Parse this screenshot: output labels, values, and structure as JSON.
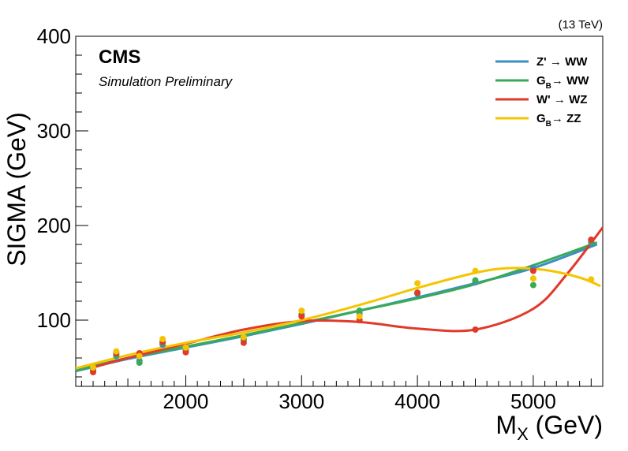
{
  "chart_data": {
    "type": "scatter",
    "title": "",
    "xlabel_main": "M",
    "xlabel_sub": "X",
    "xlabel_unit": " (GeV)",
    "ylabel": "SIGMA (GeV)",
    "experiment": "CMS",
    "status": "Simulation Preliminary",
    "energy": "(13 TeV)",
    "xlim": [
      1050,
      5600
    ],
    "ylim": [
      30,
      400
    ],
    "xticks": [
      2000,
      3000,
      4000,
      5000
    ],
    "xtick_labels": [
      "2000",
      "3000",
      "4000",
      "5000"
    ],
    "yticks": [
      100,
      200,
      300,
      400
    ],
    "ytick_labels": [
      "100",
      "200",
      "300",
      "400"
    ],
    "grid": false,
    "legend_position": "top-right",
    "series": [
      {
        "label_main": "Z'",
        "label_sub": "",
        "label_arrow": " → ",
        "label_final": "WW",
        "color": "#3a8fc4",
        "points": [
          [
            1200,
            48
          ],
          [
            1400,
            62
          ],
          [
            1600,
            57
          ],
          [
            1800,
            74
          ],
          [
            2000,
            68
          ],
          [
            2500,
            79
          ],
          [
            3000,
            105
          ],
          [
            3500,
            107
          ],
          [
            4000,
            128
          ],
          [
            4500,
            140
          ],
          [
            5000,
            155
          ],
          [
            5500,
            182
          ]
        ],
        "fit": [
          [
            1050,
            46
          ],
          [
            1500,
            59
          ],
          [
            2000,
            71
          ],
          [
            2500,
            83
          ],
          [
            3000,
            96
          ],
          [
            3500,
            110
          ],
          [
            4000,
            124
          ],
          [
            4500,
            139
          ],
          [
            5000,
            155
          ],
          [
            5550,
            180
          ]
        ]
      },
      {
        "label_main": "G",
        "label_sub": "B",
        "label_arrow": "→ ",
        "label_final": "WW",
        "color": "#3aaa55",
        "points": [
          [
            1200,
            47
          ],
          [
            1400,
            63
          ],
          [
            1600,
            55
          ],
          [
            1800,
            76
          ],
          [
            2000,
            69
          ],
          [
            2500,
            80
          ],
          [
            3000,
            106
          ],
          [
            3500,
            110
          ],
          [
            4000,
            129
          ],
          [
            4500,
            142
          ],
          [
            5000,
            137
          ],
          [
            5500,
            183
          ]
        ],
        "fit": [
          [
            1050,
            47
          ],
          [
            1500,
            60
          ],
          [
            2000,
            72
          ],
          [
            2500,
            84
          ],
          [
            3000,
            97
          ],
          [
            3500,
            110
          ],
          [
            4000,
            123
          ],
          [
            4500,
            138
          ],
          [
            5000,
            158
          ],
          [
            5550,
            182
          ]
        ]
      },
      {
        "label_main": "W'",
        "label_sub": "",
        "label_arrow": " → ",
        "label_final": "WZ",
        "color": "#e03a2a",
        "points": [
          [
            1200,
            45
          ],
          [
            1400,
            65
          ],
          [
            1600,
            65
          ],
          [
            1800,
            77
          ],
          [
            2000,
            66
          ],
          [
            2500,
            76
          ],
          [
            3000,
            104
          ],
          [
            3500,
            100
          ],
          [
            4000,
            129
          ],
          [
            4500,
            90
          ],
          [
            5000,
            152
          ],
          [
            5500,
            185
          ]
        ],
        "fit": [
          [
            1200,
            50
          ],
          [
            1500,
            60
          ],
          [
            2000,
            75
          ],
          [
            2500,
            90
          ],
          [
            3000,
            99
          ],
          [
            3500,
            98
          ],
          [
            4000,
            91
          ],
          [
            4500,
            90
          ],
          [
            5000,
            112
          ],
          [
            5300,
            150
          ],
          [
            5600,
            198
          ]
        ]
      },
      {
        "label_main": "G",
        "label_sub": "B",
        "label_arrow": "→ ",
        "label_final": "ZZ",
        "color": "#f5c400",
        "points": [
          [
            1200,
            50
          ],
          [
            1400,
            67
          ],
          [
            1600,
            62
          ],
          [
            1800,
            80
          ],
          [
            2000,
            71
          ],
          [
            2500,
            82
          ],
          [
            3000,
            110
          ],
          [
            3500,
            104
          ],
          [
            4000,
            139
          ],
          [
            4500,
            152
          ],
          [
            5000,
            144
          ],
          [
            5500,
            143
          ]
        ],
        "fit": [
          [
            1050,
            49
          ],
          [
            1500,
            63
          ],
          [
            2000,
            76
          ],
          [
            2500,
            87
          ],
          [
            3000,
            100
          ],
          [
            3500,
            116
          ],
          [
            4000,
            134
          ],
          [
            4500,
            150
          ],
          [
            4800,
            155
          ],
          [
            5100,
            153
          ],
          [
            5400,
            145
          ],
          [
            5580,
            136
          ]
        ]
      }
    ]
  }
}
